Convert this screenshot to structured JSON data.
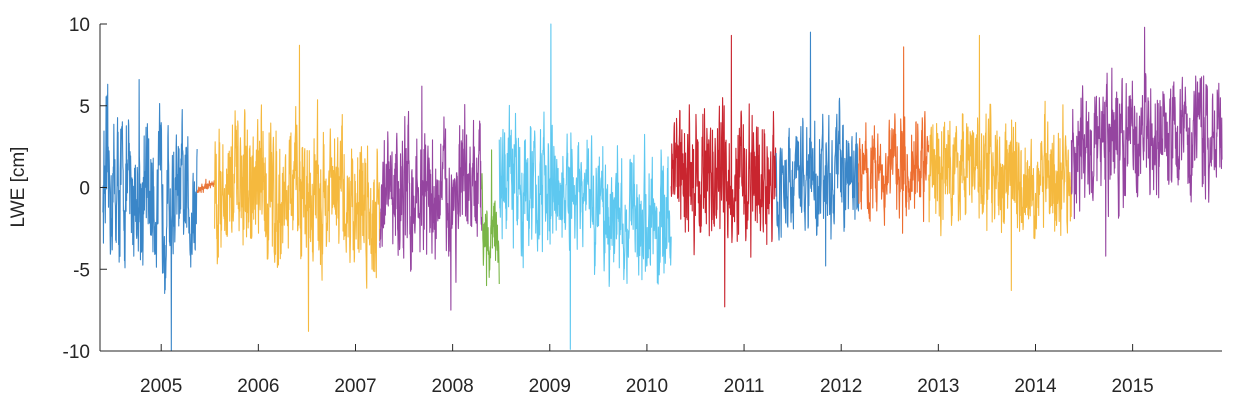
{
  "chart_data": {
    "type": "line",
    "title": "",
    "xlabel": "",
    "ylabel": "LWE [cm]",
    "xlim": [
      2004.37,
      2015.92
    ],
    "ylim": [
      -10,
      10
    ],
    "xticks": [
      2005,
      2006,
      2007,
      2008,
      2009,
      2010,
      2011,
      2012,
      2013,
      2014,
      2015
    ],
    "xtick_labels": [
      "2005",
      "2006",
      "2007",
      "2008",
      "2009",
      "2010",
      "2011",
      "2012",
      "2013",
      "2014",
      "2015"
    ],
    "yticks": [
      -10,
      -5,
      0,
      5,
      10
    ],
    "ytick_labels": [
      "-10",
      "-5",
      "0",
      "5",
      "10"
    ],
    "grid": false,
    "legend": "none",
    "series": [
      {
        "x_start": 2004.4,
        "x_end": 2005.37,
        "mean_start": 0.0,
        "mean_end": -1.0,
        "amplitude": 3.0,
        "min": -10.0,
        "max": 6.6,
        "color": "#3a86c8"
      },
      {
        "x_start": 2005.37,
        "x_end": 2005.55,
        "mean_start": -0.2,
        "mean_end": 0.3,
        "amplitude": 0.2,
        "min": -0.3,
        "max": 0.5,
        "color": "#e8763a"
      },
      {
        "x_start": 2005.55,
        "x_end": 2007.25,
        "mean_start": 0.0,
        "mean_end": -1.0,
        "amplitude": 3.0,
        "min": -8.8,
        "max": 8.7,
        "color": "#f5b93e"
      },
      {
        "x_start": 2007.25,
        "x_end": 2008.3,
        "mean_start": -0.5,
        "mean_end": -0.5,
        "amplitude": 2.8,
        "min": -7.5,
        "max": 6.2,
        "color": "#9545a0"
      },
      {
        "x_start": 2008.3,
        "x_end": 2008.48,
        "mean_start": -1.5,
        "mean_end": -3.5,
        "amplitude": 1.6,
        "min": -6.0,
        "max": 2.3,
        "color": "#7ab648"
      },
      {
        "x_start": 2008.48,
        "x_end": 2010.25,
        "mean_start": 0.5,
        "mean_end": -2.5,
        "amplitude": 2.6,
        "min": -9.9,
        "max": 10.0,
        "color": "#5ec8f0"
      },
      {
        "x_start": 2010.25,
        "x_end": 2011.33,
        "mean_start": 1.0,
        "mean_end": 0.0,
        "amplitude": 3.0,
        "min": -7.3,
        "max": 9.3,
        "color": "#c9252f"
      },
      {
        "x_start": 2011.33,
        "x_end": 2012.18,
        "mean_start": 0.3,
        "mean_end": 1.0,
        "amplitude": 2.2,
        "min": -4.8,
        "max": 9.5,
        "color": "#3a86c8"
      },
      {
        "x_start": 2012.18,
        "x_end": 2012.9,
        "mean_start": 1.0,
        "mean_end": 1.5,
        "amplitude": 2.0,
        "min": -2.8,
        "max": 8.6,
        "color": "#ed6e30"
      },
      {
        "x_start": 2012.9,
        "x_end": 2014.37,
        "mean_start": 1.5,
        "mean_end": 0.5,
        "amplitude": 2.4,
        "min": -6.3,
        "max": 9.3,
        "color": "#f5b93e"
      },
      {
        "x_start": 2014.37,
        "x_end": 2015.92,
        "mean_start": 2.0,
        "mean_end": 4.0,
        "amplitude": 2.4,
        "min": -4.2,
        "max": 9.8,
        "color": "#9545a0"
      }
    ]
  }
}
